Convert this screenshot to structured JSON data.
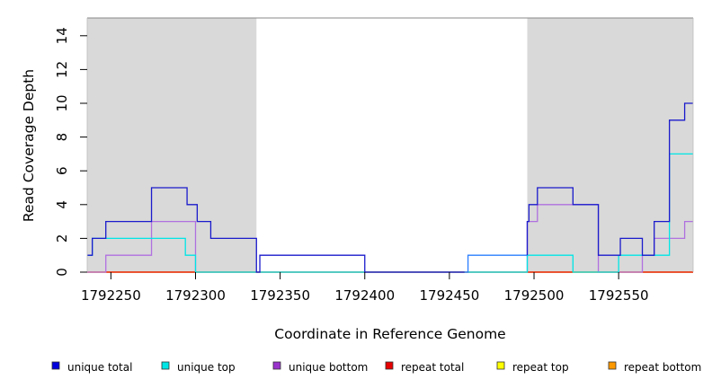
{
  "chart_data": {
    "type": "line",
    "xlabel": "Coordinate in Reference Genome",
    "ylabel": "Read Coverage Depth",
    "xlim": [
      1792236,
      1792594
    ],
    "ylim": [
      0,
      15
    ],
    "x_ticks": [
      1792250,
      1792300,
      1792350,
      1792400,
      1792450,
      1792500,
      1792550
    ],
    "y_ticks": [
      0,
      2,
      4,
      6,
      8,
      10,
      12,
      14
    ],
    "grid": false,
    "background": "#ffffff",
    "shaded_regions": [
      {
        "x": [
          1792236,
          1792336
        ],
        "color": "#d9d9d9"
      },
      {
        "x": [
          1792496,
          1792594
        ],
        "color": "#d9d9d9"
      }
    ],
    "legend_position": "bottom",
    "series": [
      {
        "name": "unique total",
        "color": "#1a1acc",
        "style": "step",
        "segments": [
          {
            "color": "#1a1acc",
            "points": [
              [
                1792236,
                1
              ],
              [
                1792239,
                1
              ],
              [
                1792239,
                2
              ],
              [
                1792247,
                2
              ],
              [
                1792247,
                3
              ],
              [
                1792274,
                3
              ],
              [
                1792274,
                5
              ],
              [
                1792295,
                5
              ],
              [
                1792295,
                4
              ],
              [
                1792301,
                4
              ],
              [
                1792301,
                3
              ],
              [
                1792309,
                3
              ],
              [
                1792309,
                2
              ],
              [
                1792336,
                2
              ],
              [
                1792336,
                0
              ],
              [
                1792338,
                0
              ],
              [
                1792338,
                1
              ],
              [
                1792400,
                1
              ],
              [
                1792400,
                0
              ],
              [
                1792459,
                0
              ]
            ]
          },
          {
            "color": "#2a7fff",
            "points": [
              [
                1792459,
                0
              ],
              [
                1792461,
                0
              ],
              [
                1792461,
                1
              ],
              [
                1792496,
                1
              ]
            ]
          },
          {
            "color": "#1a1acc",
            "points": [
              [
                1792496,
                1
              ],
              [
                1792496,
                3
              ],
              [
                1792497,
                3
              ],
              [
                1792497,
                4
              ],
              [
                1792502,
                4
              ],
              [
                1792502,
                5
              ],
              [
                1792523,
                5
              ],
              [
                1792523,
                4
              ],
              [
                1792538,
                4
              ],
              [
                1792538,
                1
              ],
              [
                1792551,
                1
              ],
              [
                1792551,
                2
              ],
              [
                1792564,
                2
              ],
              [
                1792564,
                1
              ],
              [
                1792571,
                1
              ],
              [
                1792571,
                3
              ],
              [
                1792580,
                3
              ],
              [
                1792580,
                9
              ],
              [
                1792589,
                9
              ],
              [
                1792589,
                10
              ],
              [
                1792594,
                10
              ]
            ]
          }
        ]
      },
      {
        "name": "unique top",
        "color": "#00e5e5",
        "style": "step",
        "points": [
          [
            1792236,
            1
          ],
          [
            1792239,
            1
          ],
          [
            1792239,
            2
          ],
          [
            1792294,
            2
          ],
          [
            1792294,
            1
          ],
          [
            1792300,
            1
          ],
          [
            1792300,
            0
          ],
          [
            1792496,
            0
          ],
          [
            1792496,
            1
          ],
          [
            1792523,
            1
          ],
          [
            1792523,
            0
          ],
          [
            1792550,
            0
          ],
          [
            1792550,
            1
          ],
          [
            1792580,
            1
          ],
          [
            1792580,
            7
          ],
          [
            1792594,
            7
          ]
        ]
      },
      {
        "name": "unique bottom",
        "color": "#b070e0",
        "style": "step",
        "points": [
          [
            1792236,
            0
          ],
          [
            1792247,
            0
          ],
          [
            1792247,
            1
          ],
          [
            1792274,
            1
          ],
          [
            1792274,
            3
          ],
          [
            1792300,
            3
          ],
          [
            1792300,
            0
          ],
          [
            1792496,
            0
          ],
          [
            1792496,
            3
          ],
          [
            1792502,
            3
          ],
          [
            1792502,
            4
          ],
          [
            1792538,
            4
          ],
          [
            1792538,
            0
          ],
          [
            1792564,
            0
          ],
          [
            1792564,
            1
          ],
          [
            1792571,
            1
          ],
          [
            1792571,
            2
          ],
          [
            1792589,
            2
          ],
          [
            1792589,
            3
          ],
          [
            1792594,
            3
          ]
        ]
      },
      {
        "name": "repeat total",
        "color": "#e60000",
        "style": "step",
        "points": [
          [
            1792236,
            0
          ],
          [
            1792594,
            0
          ]
        ]
      },
      {
        "name": "repeat top",
        "color": "#f0f000",
        "style": "step",
        "points": [
          [
            1792236,
            0
          ],
          [
            1792594,
            0
          ]
        ]
      },
      {
        "name": "repeat bottom",
        "color": "#ff9900",
        "style": "step",
        "points": [
          [
            1792236,
            0
          ],
          [
            1792594,
            0
          ]
        ]
      }
    ],
    "legend": [
      {
        "label": "unique total",
        "color": "#0000dd"
      },
      {
        "label": "unique top",
        "color": "#00e5e5"
      },
      {
        "label": "unique bottom",
        "color": "#9933cc"
      },
      {
        "label": "repeat total",
        "color": "#e60000"
      },
      {
        "label": "repeat top",
        "color": "#ffff00"
      },
      {
        "label": "repeat bottom",
        "color": "#ff9900"
      }
    ]
  }
}
